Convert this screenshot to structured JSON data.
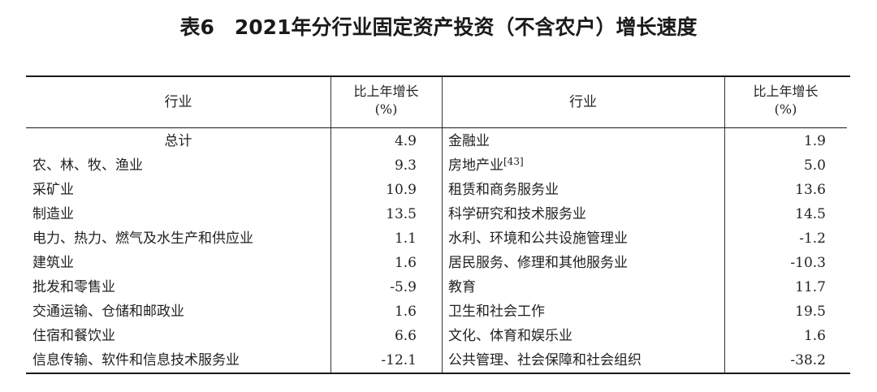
{
  "title": "表6　2021年分行业固定资产投资（不含农户）增长速度",
  "headers": {
    "industry_left": "行业",
    "growth_left_line1": "比上年增长",
    "growth_left_line2": "(%)",
    "industry_right": "行业",
    "growth_right_line1": "比上年增长",
    "growth_right_line2": "(%)"
  },
  "rows": [
    {
      "left_industry": "总计",
      "left_value": "4.9",
      "right_industry": "金融业",
      "right_note": "",
      "right_value": "1.9"
    },
    {
      "left_industry": "农、林、牧、渔业",
      "left_value": "9.3",
      "right_industry": "房地产业",
      "right_note": "[43]",
      "right_value": "5.0"
    },
    {
      "left_industry": "采矿业",
      "left_value": "10.9",
      "right_industry": "租赁和商务服务业",
      "right_note": "",
      "right_value": "13.6"
    },
    {
      "left_industry": "制造业",
      "left_value": "13.5",
      "right_industry": "科学研究和技术服务业",
      "right_note": "",
      "right_value": "14.5"
    },
    {
      "left_industry": "电力、热力、燃气及水生产和供应业",
      "left_value": "1.1",
      "right_industry": "水利、环境和公共设施管理业",
      "right_note": "",
      "right_value": "-1.2"
    },
    {
      "left_industry": "建筑业",
      "left_value": "1.6",
      "right_industry": "居民服务、修理和其他服务业",
      "right_note": "",
      "right_value": "-10.3"
    },
    {
      "left_industry": "批发和零售业",
      "left_value": "-5.9",
      "right_industry": "教育",
      "right_note": "",
      "right_value": "11.7"
    },
    {
      "left_industry": "交通运输、仓储和邮政业",
      "left_value": "1.6",
      "right_industry": "卫生和社会工作",
      "right_note": "",
      "right_value": "19.5"
    },
    {
      "left_industry": "住宿和餐饮业",
      "left_value": "6.6",
      "right_industry": "文化、体育和娱乐业",
      "right_note": "",
      "right_value": "1.6"
    },
    {
      "left_industry": "信息传输、软件和信息技术服务业",
      "left_value": "-12.1",
      "right_industry": "公共管理、社会保障和社会组织",
      "right_note": "",
      "right_value": "-38.2"
    }
  ]
}
